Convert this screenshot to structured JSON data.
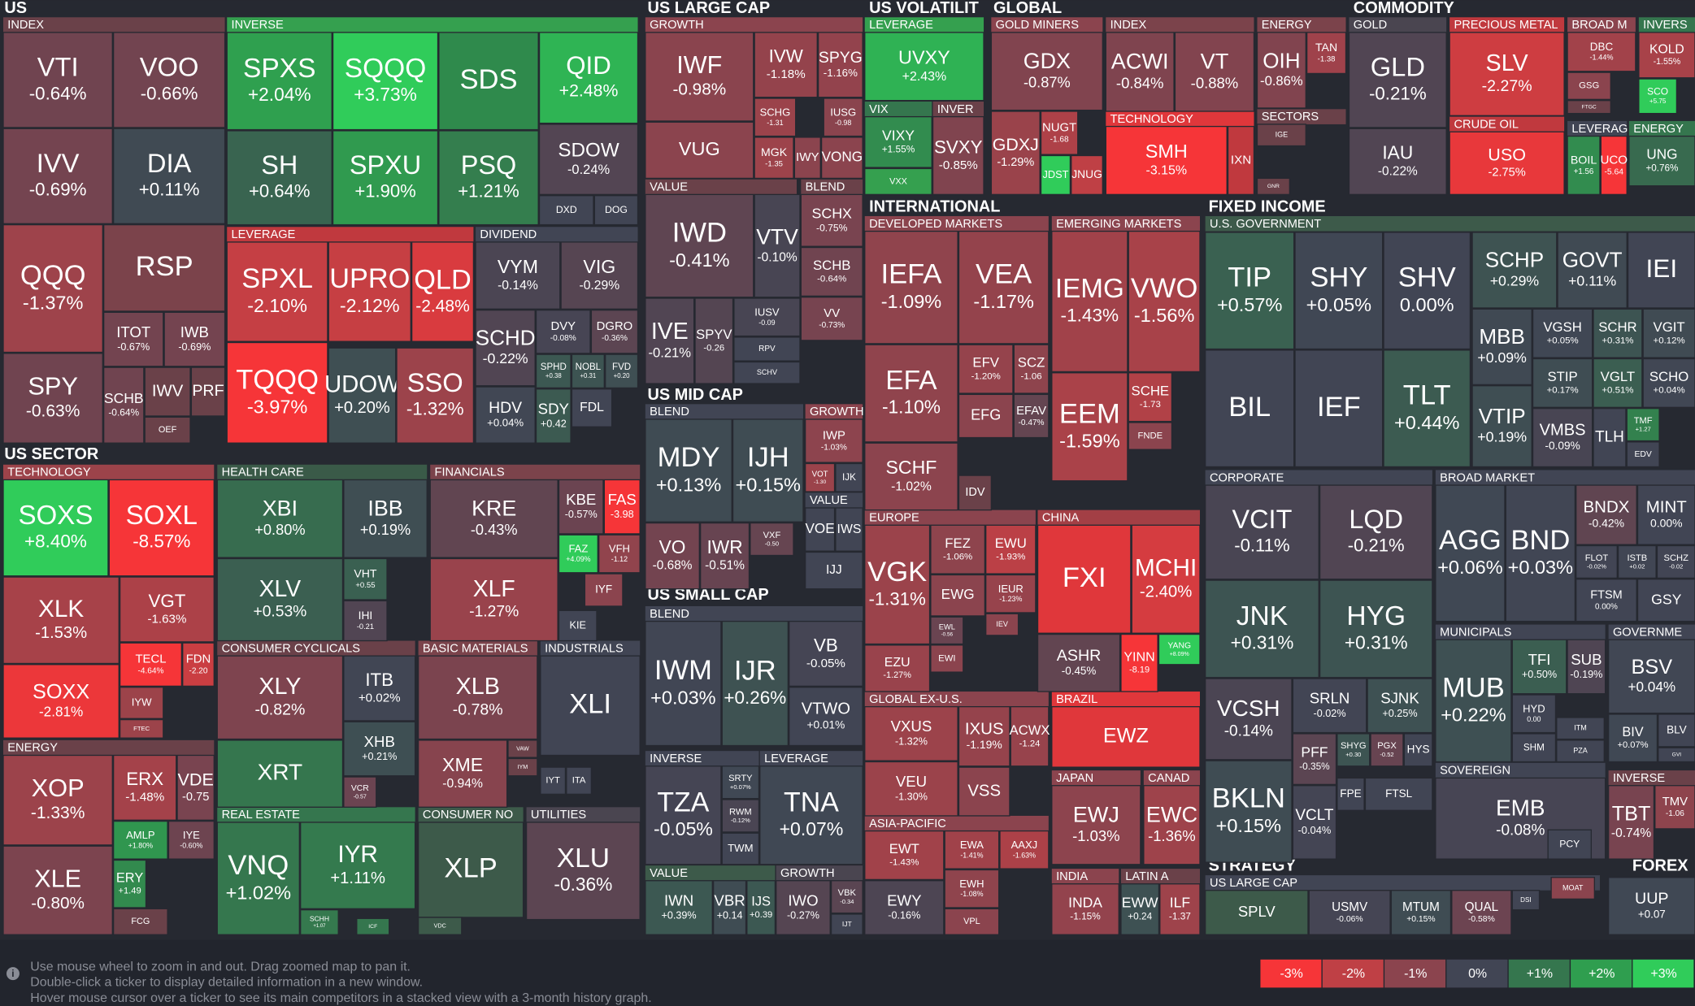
{
  "sections": [
    "US",
    "US LARGE CAP",
    "US VOLATILIT",
    "GLOBAL",
    "COMMODITY",
    "US SECTOR",
    "US MID CAP",
    "US SMALL CAP",
    "INTERNATIONAL",
    "FIXED INCOME",
    "STRATEGY",
    "FOREX"
  ],
  "groups": [
    "INDEX",
    "INVERSE",
    "LEVERAGE",
    "DIVIDEND",
    "TECHNOLOGY",
    "HEALTH CARE",
    "FINANCIALS",
    "CONSUMER CYCLICALS",
    "BASIC MATERIALS",
    "INDUSTRIALS",
    "REAL ESTATE",
    "CONSUMER NO",
    "UTILITIES",
    "ENERGY",
    "GROWTH",
    "VALUE",
    "BLEND",
    "BLEND",
    "GROWTH",
    "VALUE",
    "BLEND",
    "INVERSE",
    "LEVERAGE",
    "VALUE",
    "GROWTH",
    "LEVERAGE",
    "VIX",
    "INVER",
    "GOLD MINERS",
    "INDEX",
    "TECHNOLOGY",
    "ENERGY",
    "SECTORS",
    "GOLD",
    "PRECIOUS METAL",
    "BROAD M",
    "INVERS",
    "CRUDE OIL",
    "LEVERAG",
    "ENERGY",
    "DEVELOPED MARKETS",
    "EMERGING MARKETS",
    "EUROPE",
    "CHINA",
    "GLOBAL EX-U.S.",
    "BRAZIL",
    "JAPAN",
    "CANAD",
    "ASIA-PACIFIC",
    "INDIA",
    "LATIN A",
    "U.S. GOVERNMENT",
    "CORPORATE",
    "BROAD MARKET",
    "MUNICIPALS",
    "GOVERNME",
    "SOVEREIGN",
    "INVERSE",
    "US LARGE CAP"
  ],
  "tiles": [
    [
      "VTI",
      "-0.64%"
    ],
    [
      "VOO",
      "-0.66%"
    ],
    [
      "IVV",
      "-0.69%"
    ],
    [
      "DIA",
      "+0.11%"
    ],
    [
      "QQQ",
      "-1.37%"
    ],
    [
      "RSP"
    ],
    [
      "ITOT",
      "-0.67%"
    ],
    [
      "IWB",
      "-0.69%"
    ],
    [
      "SPY",
      "-0.63%"
    ],
    [
      "SCHB",
      "-0.64%"
    ],
    [
      "IWV"
    ],
    [
      "PRF"
    ],
    [
      "OEF"
    ],
    [
      "SPXS",
      "+2.04%"
    ],
    [
      "SQQQ",
      "+3.73%"
    ],
    [
      "SDS"
    ],
    [
      "QID",
      "+2.48%"
    ],
    [
      "SH",
      "+0.64%"
    ],
    [
      "SPXU",
      "+1.90%"
    ],
    [
      "PSQ",
      "+1.21%"
    ],
    [
      "SDOW",
      "-0.24%"
    ],
    [
      "DXD"
    ],
    [
      "DOG"
    ],
    [
      "SPXL",
      "-2.10%"
    ],
    [
      "UPRO",
      "-2.12%"
    ],
    [
      "QLD",
      "-2.48%"
    ],
    [
      "TQQQ",
      "-3.97%"
    ],
    [
      "UDOW",
      "+0.20%"
    ],
    [
      "SSO",
      "-1.32%"
    ],
    [
      "VYM",
      "-0.14%"
    ],
    [
      "VIG",
      "-0.29%"
    ],
    [
      "SCHD",
      "-0.22%"
    ],
    [
      "DVY",
      "-0.08%"
    ],
    [
      "DGRO",
      "-0.36%"
    ],
    [
      "SPHD",
      "+0.38"
    ],
    [
      "NOBL",
      "+0.31"
    ],
    [
      "FVD",
      "+0.20"
    ],
    [
      "HDV",
      "+0.04%"
    ],
    [
      "SDY",
      "+0.42"
    ],
    [
      "FDL"
    ],
    [
      "SOXS",
      "+8.40%"
    ],
    [
      "SOXL",
      "-8.57%"
    ],
    [
      "XLK",
      "-1.53%"
    ],
    [
      "VGT",
      "-1.63%"
    ],
    [
      "SOXX",
      "-2.81%"
    ],
    [
      "TECL",
      "-4.64%"
    ],
    [
      "FDN",
      "-2.20"
    ],
    [
      "IYW"
    ],
    [
      "FTEC"
    ],
    [
      "XOP",
      "-1.33%"
    ],
    [
      "ERX",
      "-1.48%"
    ],
    [
      "VDE",
      "-0.75"
    ],
    [
      "AMLP",
      "+1.80%"
    ],
    [
      "IYE",
      "-0.60%"
    ],
    [
      "XLE",
      "-0.80%"
    ],
    [
      "ERY",
      "+1.49"
    ],
    [
      "FCG"
    ],
    [
      "XBI",
      "+0.80%"
    ],
    [
      "IBB",
      "+0.19%"
    ],
    [
      "XLV",
      "+0.53%"
    ],
    [
      "VHT",
      "+0.55"
    ],
    [
      "IHI",
      "-0.21"
    ],
    [
      "KRE",
      "-0.43%"
    ],
    [
      "KBE",
      "-0.57%"
    ],
    [
      "FAS",
      "-3.98"
    ],
    [
      "FAZ",
      "+4.09%"
    ],
    [
      "VFH",
      "-1.12"
    ],
    [
      "XLF",
      "-1.27%"
    ],
    [
      "IYF"
    ],
    [
      "KIE"
    ],
    [
      "XLY",
      "-0.82%"
    ],
    [
      "ITB",
      "+0.02%"
    ],
    [
      "XHB",
      "+0.21%"
    ],
    [
      "XRT"
    ],
    [
      "VCR",
      "-0.57"
    ],
    [
      "XLB",
      "-0.78%"
    ],
    [
      "XME",
      "-0.94%"
    ],
    [
      "VAW"
    ],
    [
      "IYM"
    ],
    [
      "XLI"
    ],
    [
      "IYT"
    ],
    [
      "ITA"
    ],
    [
      "VNQ",
      "+1.02%"
    ],
    [
      "IYR",
      "+1.11%"
    ],
    [
      "SCHH",
      "+1.07"
    ],
    [
      "ICF"
    ],
    [
      "XLP"
    ],
    [
      "VDC"
    ],
    [
      "XLU",
      "-0.36%"
    ],
    [
      "IWF",
      "-0.98%"
    ],
    [
      "IVW",
      "-1.18%"
    ],
    [
      "SPYG",
      "-1.16%"
    ],
    [
      "VUG"
    ],
    [
      "SCHG",
      "-1.31"
    ],
    [
      "IUSG",
      "-0.98"
    ],
    [
      "MGK",
      "-1.35"
    ],
    [
      "IWY"
    ],
    [
      "VONG"
    ],
    [
      "IWD",
      "-0.41%"
    ],
    [
      "VTV",
      "-0.10%"
    ],
    [
      "IVE",
      "-0.21%"
    ],
    [
      "SPYV",
      "-0.26"
    ],
    [
      "IUSV",
      "-0.09"
    ],
    [
      "RPV"
    ],
    [
      "SCHV"
    ],
    [
      "SCHX",
      "-0.75%"
    ],
    [
      "SCHB",
      "-0.64%"
    ],
    [
      "VV",
      "-0.73%"
    ],
    [
      "MDY",
      "+0.13%"
    ],
    [
      "IJH",
      "+0.15%"
    ],
    [
      "VO",
      "-0.68%"
    ],
    [
      "IWR",
      "-0.51%"
    ],
    [
      "VXF",
      "-0.50"
    ],
    [
      "IWP",
      "-1.03%"
    ],
    [
      "VOT",
      "-1.30"
    ],
    [
      "IJK"
    ],
    [
      "VOE"
    ],
    [
      "IWS"
    ],
    [
      "IJJ"
    ],
    [
      "IWM",
      "+0.03%"
    ],
    [
      "IJR",
      "+0.26%"
    ],
    [
      "VB",
      "-0.05%"
    ],
    [
      "VTWO",
      "+0.01%"
    ],
    [
      "TZA",
      "-0.05%"
    ],
    [
      "SRTY",
      "+0.07%"
    ],
    [
      "RWM",
      "-0.12%"
    ],
    [
      "TWM"
    ],
    [
      "TNA",
      "+0.07%"
    ],
    [
      "IWN",
      "+0.39%"
    ],
    [
      "VBR",
      "+0.14"
    ],
    [
      "IJS",
      "+0.39"
    ],
    [
      "IWO",
      "-0.27%"
    ],
    [
      "VBK",
      "-0.34"
    ],
    [
      "IJT"
    ],
    [
      "UVXY",
      "+2.43%"
    ],
    [
      "VIXY",
      "+1.55%"
    ],
    [
      "VXX"
    ],
    [
      "SVXY",
      "-0.85%"
    ],
    [
      "GDX",
      "-0.87%"
    ],
    [
      "GDXJ",
      "-1.29%"
    ],
    [
      "NUGT",
      "-1.68"
    ],
    [
      "JDST"
    ],
    [
      "JNUG"
    ],
    [
      "ACWI",
      "-0.84%"
    ],
    [
      "VT",
      "-0.88%"
    ],
    [
      "SMH",
      "-3.15%"
    ],
    [
      "IXN"
    ],
    [
      "OIH",
      "-0.86%"
    ],
    [
      "TAN",
      "-1.38"
    ],
    [
      "IGE"
    ],
    [
      "GNR"
    ],
    [
      "GLD",
      "-0.21%"
    ],
    [
      "IAU",
      "-0.22%"
    ],
    [
      "SLV",
      "-2.27%"
    ],
    [
      "USO",
      "-2.75%"
    ],
    [
      "DBC",
      "-1.44%"
    ],
    [
      "GSG"
    ],
    [
      "FTGC"
    ],
    [
      "KOLD",
      "-1.55%"
    ],
    [
      "SCO",
      "+5.75"
    ],
    [
      "BOIL",
      "+1.56"
    ],
    [
      "UCO",
      "-5.64"
    ],
    [
      "UNG",
      "+0.76%"
    ],
    [
      "IEFA",
      "-1.09%"
    ],
    [
      "VEA",
      "-1.17%"
    ],
    [
      "EFA",
      "-1.10%"
    ],
    [
      "EFV",
      "-1.20%"
    ],
    [
      "SCZ",
      "-1.06"
    ],
    [
      "EFG"
    ],
    [
      "EFAV",
      "-0.47%"
    ],
    [
      "SCHF",
      "-1.02%"
    ],
    [
      "IDV"
    ],
    [
      "IEMG",
      "-1.43%"
    ],
    [
      "VWO",
      "-1.56%"
    ],
    [
      "EEM",
      "-1.59%"
    ],
    [
      "SCHE",
      "-1.73"
    ],
    [
      "FNDE"
    ],
    [
      "VGK",
      "-1.31%"
    ],
    [
      "FEZ",
      "-1.06%"
    ],
    [
      "EWU",
      "-1.93%"
    ],
    [
      "EWG"
    ],
    [
      "IEUR",
      "-1.23%"
    ],
    [
      "EWL",
      "-0.56"
    ],
    [
      "IEV"
    ],
    [
      "EZU",
      "-1.27%"
    ],
    [
      "EWI"
    ],
    [
      "FXI"
    ],
    [
      "MCHI",
      "-2.40%"
    ],
    [
      "ASHR",
      "-0.45%"
    ],
    [
      "YINN",
      "-8.19"
    ],
    [
      "YANG",
      "+8.09%"
    ],
    [
      "VXUS",
      "-1.32%"
    ],
    [
      "IXUS",
      "-1.19%"
    ],
    [
      "ACWX",
      "-1.24"
    ],
    [
      "VEU",
      "-1.30%"
    ],
    [
      "VSS"
    ],
    [
      "EWZ"
    ],
    [
      "EWJ",
      "-1.03%"
    ],
    [
      "EWC",
      "-1.36%"
    ],
    [
      "EWT",
      "-1.43%"
    ],
    [
      "EWA",
      "-1.41%"
    ],
    [
      "AAXJ",
      "-1.63%"
    ],
    [
      "EWH",
      "-1.08%"
    ],
    [
      "EWY",
      "-0.16%"
    ],
    [
      "VPL"
    ],
    [
      "INDA",
      "-1.15%"
    ],
    [
      "EWW",
      "+0.24"
    ],
    [
      "ILF",
      "-1.37"
    ],
    [
      "TIP",
      "+0.57%"
    ],
    [
      "SHY",
      "+0.05%"
    ],
    [
      "SHV",
      "0.00%"
    ],
    [
      "BIL"
    ],
    [
      "IEF"
    ],
    [
      "TLT",
      "+0.44%"
    ],
    [
      "SCHP",
      "+0.29%"
    ],
    [
      "GOVT",
      "+0.11%"
    ],
    [
      "IEI"
    ],
    [
      "MBB",
      "+0.09%"
    ],
    [
      "VGSH",
      "+0.05%"
    ],
    [
      "SCHR",
      "+0.31%"
    ],
    [
      "VGIT",
      "+0.12%"
    ],
    [
      "STIP",
      "+0.17%"
    ],
    [
      "VGLT",
      "+0.51%"
    ],
    [
      "SCHO",
      "+0.04%"
    ],
    [
      "VTIP",
      "+0.19%"
    ],
    [
      "VMBS",
      "-0.09%"
    ],
    [
      "TLH"
    ],
    [
      "TMF",
      "+1.27"
    ],
    [
      "EDV"
    ],
    [
      "VCIT",
      "-0.11%"
    ],
    [
      "LQD",
      "-0.21%"
    ],
    [
      "JNK",
      "+0.31%"
    ],
    [
      "HYG",
      "+0.31%"
    ],
    [
      "VCSH",
      "-0.14%"
    ],
    [
      "SRLN",
      "-0.02%"
    ],
    [
      "SJNK",
      "+0.25%"
    ],
    [
      "PFF",
      "-0.35%"
    ],
    [
      "SHYG",
      "+0.30"
    ],
    [
      "PGX",
      "-0.52"
    ],
    [
      "HYS"
    ],
    [
      "BKLN",
      "+0.15%"
    ],
    [
      "FPE"
    ],
    [
      "FTSL"
    ],
    [
      "VCLT",
      "-0.04%"
    ],
    [
      "AGG",
      "+0.06%"
    ],
    [
      "BND",
      "+0.03%"
    ],
    [
      "BNDX",
      "-0.42%"
    ],
    [
      "MINT",
      "0.00%"
    ],
    [
      "FLOT",
      "-0.02%"
    ],
    [
      "ISTB",
      "+0.02"
    ],
    [
      "SCHZ",
      "-0.02"
    ],
    [
      "FTSM",
      "0.00%"
    ],
    [
      "GSY"
    ],
    [
      "MUB",
      "+0.22%"
    ],
    [
      "TFI",
      "+0.50%"
    ],
    [
      "SUB",
      "-0.19%"
    ],
    [
      "HYD",
      "0.00"
    ],
    [
      "SHM"
    ],
    [
      "ITM"
    ],
    [
      "PZA"
    ],
    [
      "BSV",
      "+0.04%"
    ],
    [
      "BIV",
      "+0.07%"
    ],
    [
      "BLV"
    ],
    [
      "GVI"
    ],
    [
      "EMB",
      "-0.08%"
    ],
    [
      "PCY"
    ],
    [
      "TBT",
      "-0.74%"
    ],
    [
      "TMV",
      "-1.06"
    ],
    [
      "SPLV"
    ],
    [
      "USMV",
      "-0.06%"
    ],
    [
      "MTUM",
      "+0.15%"
    ],
    [
      "QUAL",
      "-0.58%"
    ],
    [
      "DSI"
    ],
    [
      "MOAT"
    ],
    [
      "UUP",
      "+0.07"
    ]
  ],
  "help": [
    "Use mouse wheel to zoom in and out. Drag zoomed map to pan it.",
    "Double-click a ticker to display detailed information in a new window.",
    "Hover mouse cursor over a ticker to see its main competitors in a stacked view with a 3-month history graph."
  ],
  "legend": [
    "-3%",
    "-2%",
    "-1%",
    "0%",
    "+1%",
    "+2%",
    "+3%"
  ]
}
